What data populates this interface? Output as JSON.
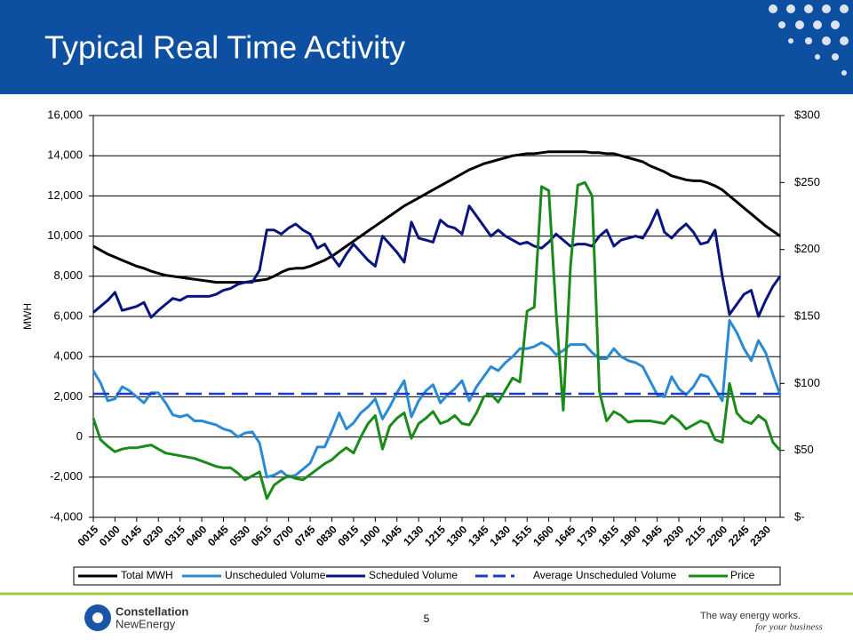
{
  "slide": {
    "page_number": "5",
    "logo_top": "Constellation",
    "logo_bottom": "NewEnergy",
    "tagline": "The way energy works.",
    "tagline_script": "for your business"
  },
  "chart_data": {
    "type": "line",
    "title": "Typical Real Time Activity",
    "y_label": "MWH",
    "categories": [
      "0015",
      null,
      null,
      "0100",
      null,
      null,
      "0145",
      null,
      null,
      "0230",
      null,
      null,
      "0315",
      null,
      null,
      "0400",
      null,
      null,
      "0445",
      null,
      null,
      "0530",
      null,
      null,
      "0615",
      null,
      null,
      "0700",
      null,
      null,
      "0745",
      null,
      null,
      "0830",
      null,
      null,
      "0915",
      null,
      null,
      "1000",
      null,
      null,
      "1045",
      null,
      null,
      "1130",
      null,
      null,
      "1215",
      null,
      null,
      "1300",
      null,
      null,
      "1345",
      null,
      null,
      "1430",
      null,
      null,
      "1515",
      null,
      null,
      "1600",
      null,
      null,
      "1645",
      null,
      null,
      "1730",
      null,
      null,
      "1815",
      null,
      null,
      "1900",
      null,
      null,
      "1945",
      null,
      null,
      "2030",
      null,
      null,
      "2115",
      null,
      null,
      "2200",
      null,
      null,
      "2245",
      null,
      null,
      "2330",
      null,
      null
    ],
    "ylim": [
      -4000,
      16000
    ],
    "yticks": [
      {
        "value": 16000,
        "label": "16,000"
      },
      {
        "value": 14000,
        "label": "14,000"
      },
      {
        "value": 12000,
        "label": "12,000"
      },
      {
        "value": 10000,
        "label": "10,000"
      },
      {
        "value": 8000,
        "label": "8,000"
      },
      {
        "value": 6000,
        "label": "6,000"
      },
      {
        "value": 4000,
        "label": "4,000"
      },
      {
        "value": 2000,
        "label": "2,000"
      },
      0,
      {
        "value": -2000,
        "label": "-2,000"
      },
      {
        "value": -4000,
        "label": "-4,000"
      }
    ],
    "y2lim": [
      0,
      300
    ],
    "y2ticks": [
      {
        "value": 300,
        "label": "$300"
      },
      {
        "value": 250,
        "label": "$250"
      },
      {
        "value": 200,
        "label": "$200"
      },
      {
        "value": 150,
        "label": "$150"
      },
      {
        "value": 100,
        "label": "$100"
      },
      {
        "value": 50,
        "label": "$50"
      },
      {
        "value": 0,
        "label": "$-"
      }
    ],
    "grid": true,
    "legend": "bottom",
    "series": [
      {
        "name": "Total MWH",
        "color": "#000000",
        "values": [
          9500,
          9300,
          9100,
          8950,
          8800,
          8650,
          8500,
          8400,
          8250,
          8150,
          8050,
          8000,
          7950,
          7900,
          7850,
          7800,
          7750,
          7700,
          7700,
          7700,
          7700,
          7700,
          7750,
          7800,
          7850,
          8000,
          8200,
          8350,
          8400,
          8400,
          8500,
          8650,
          8800,
          9000,
          9250,
          9500,
          9750,
          10000,
          10250,
          10500,
          10750,
          11000,
          11250,
          11500,
          11700,
          11900,
          12100,
          12300,
          12500,
          12700,
          12900,
          13100,
          13300,
          13450,
          13600,
          13700,
          13800,
          13900,
          14000,
          14050,
          14100,
          14100,
          14150,
          14200,
          14200,
          14200,
          14200,
          14200,
          14200,
          14150,
          14150,
          14100,
          14100,
          14000,
          13900,
          13800,
          13700,
          13500,
          13350,
          13200,
          13000,
          12900,
          12800,
          12750,
          12750,
          12650,
          12500,
          12300,
          12000,
          11700,
          11400,
          11100,
          10800,
          10500,
          10250,
          10000
        ]
      },
      {
        "name": "Unscheduled Volume",
        "color": "#2a8ad4",
        "values": [
          3300,
          2700,
          1800,
          1900,
          2500,
          2300,
          2000,
          1700,
          2200,
          2200,
          1700,
          1100,
          1000,
          1100,
          800,
          800,
          700,
          600,
          400,
          300,
          0,
          200,
          250,
          -300,
          -2000,
          -1900,
          -1700,
          -2000,
          -1900,
          -1600,
          -1300,
          -500,
          -500,
          300,
          1200,
          400,
          700,
          1200,
          1500,
          1900,
          900,
          1500,
          2200,
          2800,
          1000,
          1800,
          2300,
          2600,
          1700,
          2100,
          2400,
          2800,
          1800,
          2500,
          3000,
          3500,
          3300,
          3700,
          4000,
          4400,
          4400,
          4500,
          4700,
          4500,
          4100,
          4300,
          4600,
          4600,
          4600,
          4200,
          3900,
          3900,
          4400,
          4000,
          3800,
          3700,
          3500,
          2800,
          2100,
          2000,
          3000,
          2400,
          2100,
          2500,
          3100,
          3000,
          2400,
          1800,
          5800,
          5200,
          4400,
          3800,
          4800,
          4200,
          3100,
          2100
        ]
      },
      {
        "name": "Scheduled Volume",
        "color": "#0a1480",
        "values": [
          6200,
          6500,
          6800,
          7200,
          6300,
          6400,
          6500,
          6700,
          5950,
          6300,
          6600,
          6900,
          6800,
          7000,
          7000,
          7000,
          7000,
          7100,
          7300,
          7400,
          7600,
          7700,
          7700,
          8300,
          10300,
          10300,
          10100,
          10400,
          10600,
          10300,
          10100,
          9400,
          9600,
          9000,
          8500,
          9100,
          9600,
          9200,
          8800,
          8500,
          10000,
          9600,
          9200,
          8700,
          10700,
          9900,
          9800,
          9700,
          10800,
          10500,
          10400,
          10100,
          11500,
          11000,
          10500,
          10000,
          10300,
          10000,
          9800,
          9600,
          9700,
          9500,
          9400,
          9700,
          10100,
          9800,
          9500,
          9600,
          9600,
          9500,
          10000,
          10300,
          9500,
          9800,
          9900,
          10000,
          9900,
          10500,
          11300,
          10200,
          9900,
          10300,
          10600,
          10200,
          9600,
          9700,
          10300,
          8000,
          6100,
          6600,
          7100,
          7300,
          6000,
          6800,
          7500,
          8000
        ]
      },
      {
        "name": "Average Unscheduled Volume",
        "color": "#1a3cc8",
        "dashed": true,
        "values": [
          2150,
          2150,
          2150,
          2150,
          2150,
          2150,
          2150,
          2150,
          2150,
          2150,
          2150,
          2150,
          2150,
          2150,
          2150,
          2150,
          2150,
          2150,
          2150,
          2150,
          2150,
          2150,
          2150,
          2150,
          2150,
          2150,
          2150,
          2150,
          2150,
          2150,
          2150,
          2150,
          2150,
          2150,
          2150,
          2150,
          2150,
          2150,
          2150,
          2150,
          2150,
          2150,
          2150,
          2150,
          2150,
          2150,
          2150,
          2150,
          2150,
          2150,
          2150,
          2150,
          2150,
          2150,
          2150,
          2150,
          2150,
          2150,
          2150,
          2150,
          2150,
          2150,
          2150,
          2150,
          2150,
          2150,
          2150,
          2150,
          2150,
          2150,
          2150,
          2150,
          2150,
          2150,
          2150,
          2150,
          2150,
          2150,
          2150,
          2150,
          2150,
          2150,
          2150,
          2150,
          2150,
          2150,
          2150,
          2150,
          2150,
          2150,
          2150,
          2150,
          2150,
          2150,
          2150,
          2150
        ]
      },
      {
        "name": "Price",
        "color": "#1a8a1a",
        "axis": "y2",
        "values": [
          74,
          58,
          53,
          49,
          51,
          52,
          52,
          53,
          54,
          51,
          48,
          47,
          46,
          45,
          44,
          42,
          40,
          38,
          37,
          37,
          33,
          28,
          31,
          34,
          14,
          24,
          28,
          31,
          29,
          28,
          32,
          36,
          40,
          43,
          48,
          52,
          48,
          60,
          70,
          76,
          51,
          68,
          74,
          78,
          59,
          70,
          74,
          79,
          70,
          72,
          76,
          70,
          69,
          78,
          90,
          92,
          86,
          95,
          104,
          101,
          154,
          157,
          247,
          244,
          154,
          80,
          187,
          248,
          250,
          240,
          94,
          72,
          79,
          76,
          71,
          72,
          72,
          72,
          71,
          70,
          76,
          72,
          66,
          69,
          72,
          70,
          58,
          56,
          100,
          78,
          72,
          70,
          76,
          72,
          56,
          50
        ]
      }
    ]
  }
}
